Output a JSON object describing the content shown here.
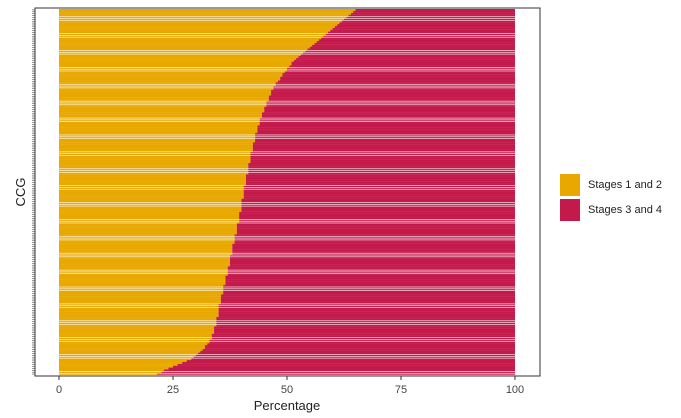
{
  "chart_data": {
    "type": "bar",
    "orientation": "horizontal",
    "stacked": true,
    "xlabel": "Percentage",
    "ylabel": "CCG",
    "xlim": [
      0,
      100
    ],
    "xticks": [
      0,
      25,
      50,
      75,
      100
    ],
    "legend_position": "right",
    "bar_count": 195,
    "series": [
      {
        "name": "Stages 1 and 2",
        "color": "#E8A800"
      },
      {
        "name": "Stages 3 and 4",
        "color": "#C41A4B"
      }
    ],
    "stage12_percent_bottom_to_top": [
      21.5,
      22.5,
      23.0,
      24.0,
      25.0,
      26.0,
      27.0,
      28.0,
      29.0,
      29.5,
      30.0,
      30.5,
      31.0,
      31.5,
      32.0,
      32.0,
      32.5,
      33.0,
      33.0,
      33.5,
      33.5,
      33.5,
      34.0,
      34.0,
      34.0,
      34.0,
      34.5,
      34.5,
      34.5,
      34.5,
      34.5,
      35.0,
      35.0,
      35.0,
      35.0,
      35.0,
      35.0,
      35.0,
      35.5,
      35.5,
      35.5,
      35.5,
      35.5,
      36.0,
      36.0,
      36.0,
      36.0,
      36.0,
      36.5,
      36.5,
      36.5,
      36.5,
      36.5,
      37.0,
      37.0,
      37.0,
      37.0,
      37.0,
      37.5,
      37.5,
      37.5,
      37.5,
      37.5,
      37.5,
      38.0,
      38.0,
      38.0,
      38.0,
      38.0,
      38.0,
      38.5,
      38.5,
      38.5,
      38.5,
      38.5,
      39.0,
      39.0,
      39.0,
      39.0,
      39.0,
      39.0,
      39.5,
      39.5,
      39.5,
      39.5,
      39.5,
      39.5,
      40.0,
      40.0,
      40.0,
      40.0,
      40.0,
      40.0,
      40.0,
      40.5,
      40.5,
      40.5,
      40.5,
      40.5,
      40.5,
      40.5,
      41.0,
      41.0,
      41.0,
      41.0,
      41.0,
      41.0,
      41.5,
      41.5,
      41.5,
      41.5,
      41.5,
      41.5,
      42.0,
      42.0,
      42.0,
      42.0,
      42.0,
      42.0,
      42.5,
      42.5,
      42.5,
      42.5,
      42.5,
      43.0,
      43.0,
      43.0,
      43.0,
      43.0,
      43.5,
      43.5,
      43.5,
      43.5,
      44.0,
      44.0,
      44.0,
      44.0,
      44.5,
      44.5,
      44.5,
      45.0,
      45.0,
      45.0,
      45.5,
      45.5,
      45.5,
      46.0,
      46.0,
      46.0,
      46.5,
      46.5,
      46.5,
      47.0,
      47.0,
      47.5,
      47.5,
      48.0,
      48.5,
      48.5,
      49.0,
      49.0,
      49.5,
      50.0,
      50.0,
      50.5,
      51.0,
      51.0,
      51.5,
      52.0,
      52.5,
      53.0,
      53.5,
      54.0,
      54.5,
      55.0,
      55.5,
      56.0,
      56.5,
      57.0,
      57.5,
      58.0,
      58.5,
      59.0,
      59.5,
      60.0,
      60.5,
      61.0,
      61.5,
      62.0,
      62.5,
      63.0,
      63.5,
      64.0,
      64.5,
      65.0
    ]
  }
}
